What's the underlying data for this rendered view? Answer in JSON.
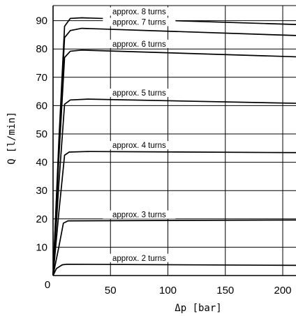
{
  "chart_data": {
    "type": "line",
    "xlabel": "Δp  [bar]",
    "ylabel": "Q [l/min]",
    "xlim": [
      0,
      215
    ],
    "ylim": [
      -2,
      95
    ],
    "xticks": [
      "0",
      "50",
      "100",
      "150",
      "200"
    ],
    "yticks": [
      "10",
      "20",
      "30",
      "40",
      "50",
      "60",
      "70",
      "80",
      "90"
    ],
    "grid": true,
    "series": [
      {
        "name": "approx. 2 turns",
        "x": [
          0,
          3,
          8,
          12,
          215
        ],
        "y": [
          0,
          2.5,
          3.8,
          4,
          3.6
        ]
      },
      {
        "name": "approx. 3 turns",
        "x": [
          0,
          5,
          9,
          13,
          215
        ],
        "y": [
          0,
          10,
          18.5,
          19.3,
          19.6
        ]
      },
      {
        "name": "approx. 4 turns",
        "x": [
          0,
          5,
          10,
          14,
          30,
          215
        ],
        "y": [
          0,
          22,
          42.5,
          43.6,
          43.8,
          43.4
        ]
      },
      {
        "name": "approx. 5 turns",
        "x": [
          0,
          5,
          10,
          15,
          30,
          215
        ],
        "y": [
          0,
          32,
          60.5,
          62,
          62.3,
          60.8
        ]
      },
      {
        "name": "approx. 6 turns",
        "x": [
          0,
          5,
          10,
          15,
          25,
          215
        ],
        "y": [
          0,
          41,
          77,
          79.2,
          79.6,
          77.2
        ]
      },
      {
        "name": "approx. 7 turns",
        "x": [
          0,
          5,
          10,
          15,
          25,
          215
        ],
        "y": [
          0,
          45,
          84,
          86.5,
          87.3,
          84.7
        ]
      },
      {
        "name": "approx. 8 turns",
        "x": [
          0,
          5,
          10,
          15,
          25,
          215
        ],
        "y": [
          0,
          47,
          88,
          90.8,
          91,
          88.6
        ]
      }
    ]
  }
}
